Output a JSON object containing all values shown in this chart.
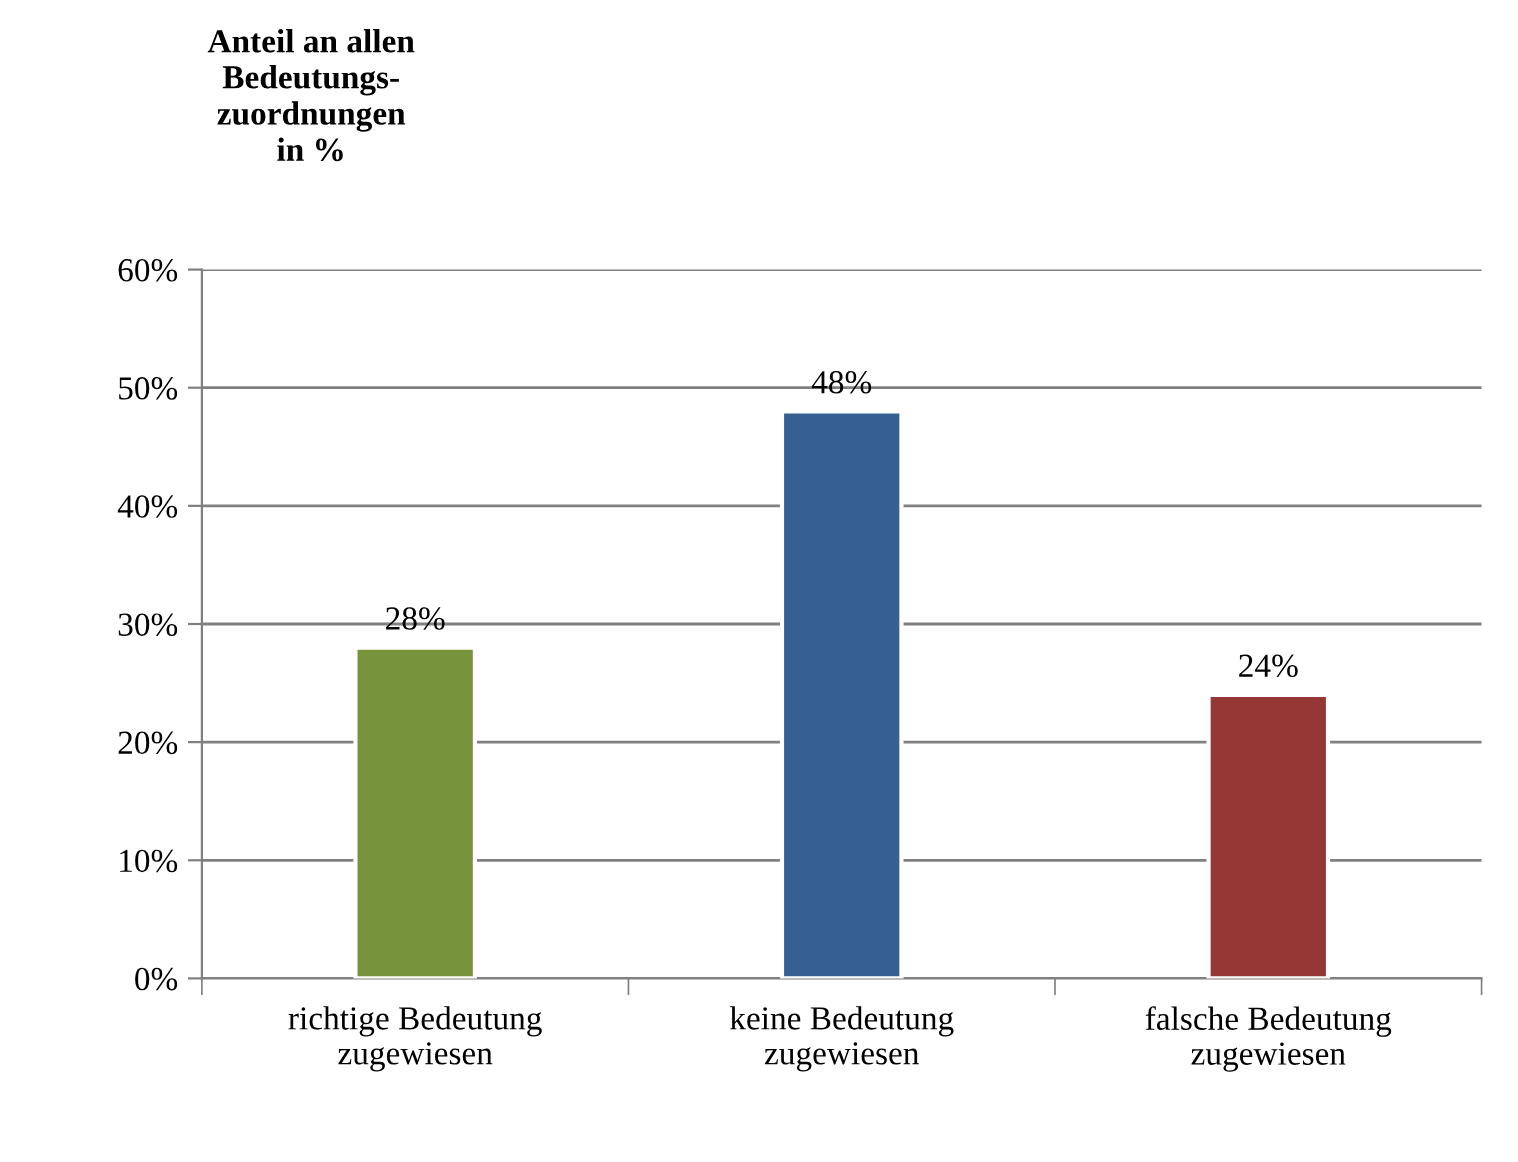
{
  "chart_data": {
    "type": "bar",
    "ylabel": "Anteil an allen\nBedeutungs-\nzuordnungen\nin %",
    "categories": [
      "richtige Bedeutung\nzugewiesen",
      "keine Bedeutung\nzugewiesen",
      "falsche Bedeutung\nzugewiesen"
    ],
    "values": [
      28,
      48,
      24
    ],
    "colors": [
      "#77933c",
      "#376092",
      "#953735"
    ],
    "value_labels": [
      "28%",
      "48%",
      "24%"
    ],
    "ylim": [
      0,
      60
    ],
    "yticks": [
      {
        "value": 0,
        "label": "0%"
      },
      {
        "value": 10,
        "label": "10%"
      },
      {
        "value": 20,
        "label": "20%"
      },
      {
        "value": 30,
        "label": "30%"
      },
      {
        "value": 40,
        "label": "40%"
      },
      {
        "value": 50,
        "label": "50%"
      },
      {
        "value": 60,
        "label": "60%"
      }
    ],
    "grid": "y",
    "legend": false
  }
}
